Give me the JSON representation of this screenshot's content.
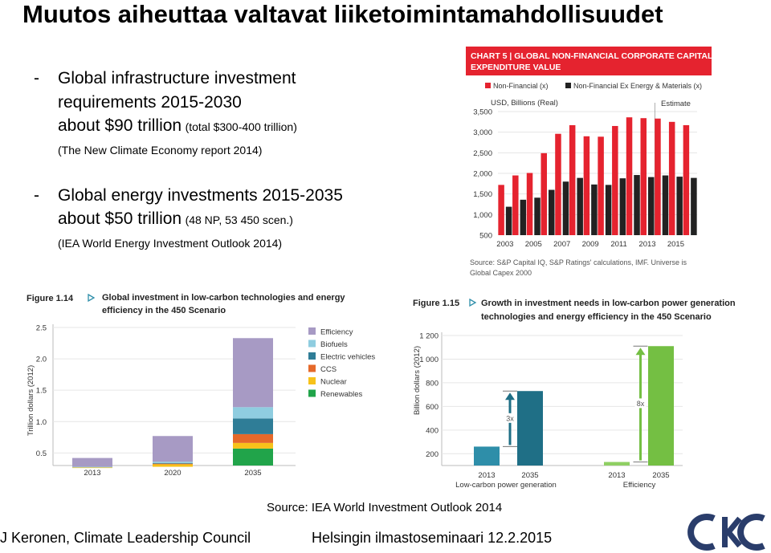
{
  "slide": {
    "title": "Muutos aiheuttaa valtavat liiketoimintamahdollisuudet",
    "bullets": [
      {
        "dash": "-",
        "line1": "Global infrastructure investment",
        "line2": "requirements 2015-2030",
        "line3_main": "about $90 trillion",
        "line3_small": "(total $300-400 trillion)",
        "note": "(The New Climate Economy report 2014)"
      },
      {
        "dash": "-",
        "line1": "Global energy investments 2015-2035",
        "line2_main": "about $50 trillion",
        "line2_small": "(48 NP, 53 450 scen.)",
        "note": "(IEA World Energy Investment Outlook 2014)"
      }
    ],
    "source": "Source: IEA World Investment Outlook 2014",
    "footer_left": "J Keronen, Climate Leadership Council",
    "footer_right": "Helsingin ilmastoseminaari 12.2.2015",
    "logo_text": "CKC"
  },
  "colors": {
    "red": "#e5232f",
    "black": "#222222",
    "chart5_header": "#e5232f",
    "efficiency": "#a79ac4",
    "biofuels": "#8fcde0",
    "electric_vehicles": "#2f7d97",
    "ccs": "#e5692a",
    "nuclear": "#f7c21a",
    "renewables": "#21a44a",
    "lowcarbon_light": "#2e8ea9",
    "lowcarbon_dark": "#1f6f86",
    "eff_light": "#8fcf63",
    "eff_dark": "#74bf43",
    "logo": "#2a3d6b"
  },
  "chart_data": [
    {
      "type": "bar",
      "title": "CHART 5 | GLOBAL NON-FINANCIAL CORPORATE CAPITAL EXPENDITURE VALUE",
      "title_line1": "CHART 5 | GLOBAL NON-FINANCIAL CORPORATE CAPITAL",
      "title_line2": "EXPENDITURE VALUE",
      "ylabel": "USD, Billions (Real)",
      "estimate_label": "Estimate",
      "ylim": [
        500,
        3500
      ],
      "yticks": [
        "3,500",
        "3,000",
        "2,500",
        "2,000",
        "1,500",
        "1,000",
        "500"
      ],
      "ytick_values": [
        3500,
        3000,
        2500,
        2000,
        1500,
        1000,
        500
      ],
      "categories": [
        "2003",
        "2004",
        "2005",
        "2006",
        "2007",
        "2008",
        "2009",
        "2010",
        "2011",
        "2012",
        "2013",
        "2014",
        "2015",
        "2016"
      ],
      "xtick_labels": [
        "2003",
        "2005",
        "2007",
        "2009",
        "2011",
        "2013",
        "2015"
      ],
      "series": [
        {
          "name": "Non-Financial (x)",
          "values": [
            1720,
            1950,
            2010,
            2490,
            2960,
            3170,
            2900,
            2890,
            3150,
            3360,
            3340,
            3330,
            3250,
            3170
          ]
        },
        {
          "name": "Non-Financial Ex Energy & Materials (x)",
          "values": [
            1190,
            1360,
            1410,
            1600,
            1800,
            1890,
            1730,
            1720,
            1880,
            1960,
            1910,
            1950,
            1920,
            1890
          ]
        }
      ],
      "source": "Source: S&P Capital IQ, S&P Ratings' calculations, IMF. Universe is Global Capex 2000",
      "source_line1": "Source: S&P Capital IQ, S&P Ratings' calculations, IMF. Universe is",
      "source_line2": "Global Capex 2000"
    },
    {
      "type": "bar",
      "figure_label": "Figure 1.14",
      "title": "Global investment in low-carbon technologies and energy efficiency in the 450 Scenario",
      "title_line1": "Global investment in low-carbon technologies and energy",
      "title_line2": "efficiency in the 450 Scenario",
      "ylabel": "Trillion dollars (2012)",
      "ylim": [
        0.3,
        2.5
      ],
      "yticks": [
        "2.5",
        "2.0",
        "1.5",
        "1.0",
        "0.5"
      ],
      "ytick_values": [
        2.5,
        2.0,
        1.5,
        1.0,
        0.5
      ],
      "categories": [
        "2013",
        "2020",
        "2035"
      ],
      "stack_order": [
        "Renewables",
        "Nuclear",
        "CCS",
        "Electric vehicles",
        "Biofuels",
        "Efficiency"
      ],
      "legend_order": [
        "Efficiency",
        "Biofuels",
        "Electric vehicles",
        "CCS",
        "Nuclear",
        "Renewables"
      ],
      "series": [
        {
          "name": "Efficiency",
          "values": [
            0.14,
            0.41,
            1.1
          ]
        },
        {
          "name": "Biofuels",
          "values": [
            0.01,
            0.02,
            0.18
          ]
        },
        {
          "name": "Electric vehicles",
          "values": [
            0.0,
            0.01,
            0.25
          ]
        },
        {
          "name": "CCS",
          "values": [
            0.0,
            0.01,
            0.14
          ]
        },
        {
          "name": "Nuclear",
          "values": [
            0.01,
            0.04,
            0.09
          ]
        },
        {
          "name": "Renewables",
          "values": [
            0.26,
            0.28,
            0.57
          ]
        }
      ]
    },
    {
      "type": "bar",
      "figure_label": "Figure 1.15",
      "title": "Growth in investment needs in low-carbon power generation technologies and energy efficiency in the 450 Scenario",
      "title_line1": "Growth in investment needs in low-carbon power generation",
      "title_line2": "technologies and energy efficiency in the 450 Scenario",
      "ylabel": "Billion dollars (2012)",
      "ylim": [
        100,
        1200
      ],
      "yticks": [
        "1 200",
        "1 000",
        "800",
        "600",
        "400",
        "200"
      ],
      "ytick_values": [
        1200,
        1000,
        800,
        600,
        400,
        200
      ],
      "groups": [
        {
          "name": "Low-carbon power generation",
          "categories": [
            "2013",
            "2035"
          ],
          "values": [
            260,
            730
          ],
          "growth": "3x"
        },
        {
          "name": "Efficiency",
          "categories": [
            "2013",
            "2035"
          ],
          "values": [
            130,
            1110
          ],
          "growth": "8x"
        }
      ]
    }
  ]
}
